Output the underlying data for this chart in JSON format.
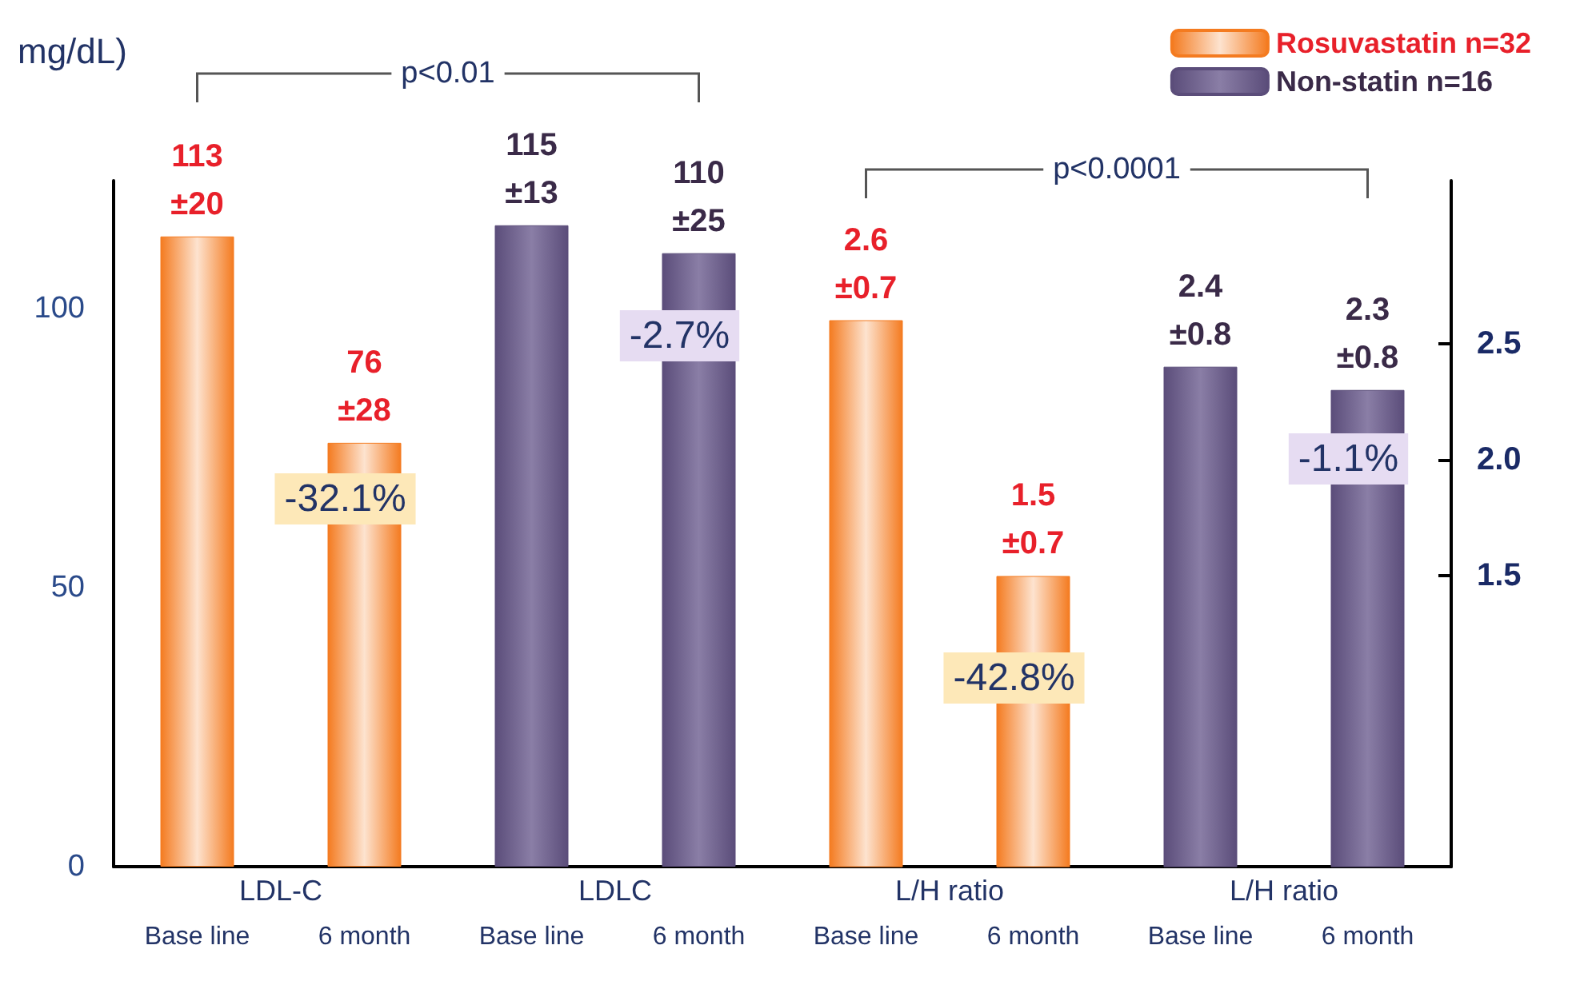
{
  "chart_data": {
    "type": "bar",
    "ylabel": "mg/dL)",
    "categories": [
      "Base line",
      "6 month",
      "Base line",
      "6 month",
      "Base line",
      "6 month",
      "Base line",
      "6 month"
    ],
    "series": [
      {
        "name": "Rosuvastatin n=32",
        "color": "#f47b20",
        "values": [
          113,
          76,
          null,
          null,
          null,
          null,
          null,
          null
        ],
        "value_labels": [
          "113\n±20",
          "76\n±28",
          null,
          null,
          null,
          null,
          null,
          null
        ]
      },
      {
        "name": "Non-statin n=16",
        "color": "#5b4d7a",
        "values": [
          null,
          null,
          115,
          110,
          null,
          null,
          null,
          null
        ],
        "value_labels": [
          null,
          null,
          "115\n±13",
          "110\n±25",
          null,
          null,
          null,
          null
        ]
      },
      {
        "color": "#f47b20",
        "axis": "y2",
        "values": [
          null,
          null,
          null,
          null,
          2.6,
          1.5,
          null,
          null
        ],
        "value_labels": [
          null,
          null,
          null,
          null,
          "2.6\n±0.7",
          "1.5\n±0.7",
          null,
          null
        ]
      },
      {
        "color": "#5b4d7a",
        "axis": "y2",
        "values": [
          null,
          null,
          null,
          null,
          null,
          null,
          2.4,
          2.3
        ],
        "value_labels": [
          null,
          null,
          null,
          null,
          null,
          null,
          "2.4\n±0.8",
          "2.3\n±0.8"
        ]
      }
    ],
    "ylim": [
      0,
      123
    ],
    "yticks": [
      0,
      50,
      100
    ],
    "y2lim": [
      0.25,
      3.2
    ],
    "y2ticks": [
      {
        "value": 1.5,
        "label": "1.5"
      },
      {
        "value": 2.0,
        "label": "2.0"
      },
      {
        "value": 2.5,
        "label": "2.5"
      }
    ],
    "annotations": [
      "LDL-C",
      "LDLC",
      "L/H ratio",
      "L/H ratio",
      "p<0.01",
      "p<0.0001",
      "-32.1%",
      "-2.7%",
      "-42.8%",
      "-1.1%"
    ],
    "grid": false,
    "legend": "top right"
  }
}
